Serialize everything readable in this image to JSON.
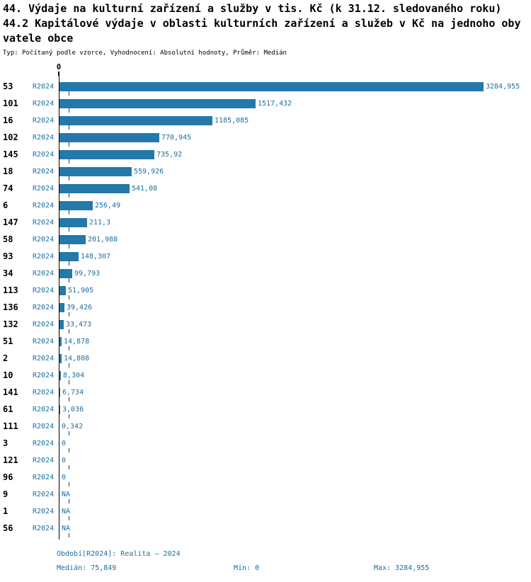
{
  "header": {
    "title_line1": "44. Výdaje na kulturní zařízení a služby v tis. Kč (k 31.12. sledovaného roku)",
    "title_line2": "44.2 Kapitálové výdaje v oblasti kulturních zařízení a služeb v Kč na jednoho oby",
    "title_line3": "vatele obce",
    "subtitle": "Typ: Počítaný podle vzorce, Vyhodnocení: Absolutní hodnoty, Průměr: Medián"
  },
  "chart_data": {
    "type": "bar",
    "orientation": "horizontal",
    "axis_zero_label": "0",
    "series_name": "R2024",
    "categories": [
      "53",
      "101",
      "16",
      "102",
      "145",
      "18",
      "74",
      "6",
      "147",
      "58",
      "93",
      "34",
      "113",
      "136",
      "132",
      "51",
      "2",
      "10",
      "141",
      "61",
      "111",
      "3",
      "121",
      "96",
      "9",
      "1",
      "56"
    ],
    "values": [
      3284.955,
      1517.432,
      1185.085,
      770.945,
      735.92,
      559.926,
      541.08,
      256.49,
      211.3,
      201.988,
      148.307,
      99.793,
      51.905,
      39.426,
      33.473,
      14.878,
      14.808,
      8.304,
      6.734,
      3.036,
      0.342,
      0,
      0,
      0,
      null,
      null,
      null
    ],
    "value_labels": [
      "3284,955",
      "1517,432",
      "1185,085",
      "770,945",
      "735,92",
      "559,926",
      "541,08",
      "256,49",
      "211,3",
      "201,988",
      "148,307",
      "99,793",
      "51,905",
      "39,426",
      "33,473",
      "14,878",
      "14,808",
      "8,304",
      "6,734",
      "3,036",
      "0,342",
      "0",
      "0",
      "0",
      "NA",
      "NA",
      "NA"
    ],
    "median": 75.849,
    "xlim": [
      0,
      3284.955
    ],
    "bar_color": "#2478aa",
    "label_color": "#1c6d9c",
    "grid": false,
    "legend": "none"
  },
  "footer": {
    "period": "Období[R2024]: Realita – 2024",
    "median": "Medián: 75,849",
    "min": "Min: 0",
    "max": "Max: 3284,955"
  }
}
